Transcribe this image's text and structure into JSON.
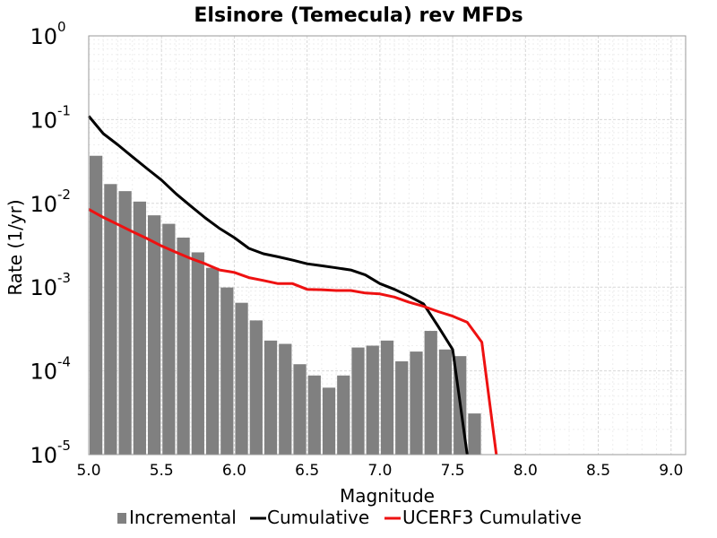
{
  "chart_data": {
    "type": "bar",
    "title": "Elsinore (Temecula) rev MFDs",
    "xlabel": "Magnitude",
    "ylabel": "Rate (1/yr)",
    "xlim": [
      5.0,
      9.1
    ],
    "ylim": [
      1e-05,
      1
    ],
    "yscale": "log",
    "grid": true,
    "legend_position": "bottom",
    "x_ticks": [
      "5.0",
      "5.5",
      "6.0",
      "6.5",
      "7.0",
      "7.5",
      "8.0",
      "8.5",
      "9.0"
    ],
    "y_ticks": [
      {
        "base": "10",
        "exp": "0"
      },
      {
        "base": "10",
        "exp": "-1"
      },
      {
        "base": "10",
        "exp": "-2"
      },
      {
        "base": "10",
        "exp": "-3"
      },
      {
        "base": "10",
        "exp": "-4"
      },
      {
        "base": "10",
        "exp": "-5"
      }
    ],
    "series": [
      {
        "name": "Incremental",
        "type": "bar",
        "color": "#808080",
        "x": [
          5.0,
          5.1,
          5.2,
          5.3,
          5.4,
          5.5,
          5.6,
          5.7,
          5.8,
          5.9,
          6.0,
          6.1,
          6.2,
          6.3,
          6.4,
          6.5,
          6.6,
          6.7,
          6.8,
          6.9,
          7.0,
          7.1,
          7.2,
          7.3,
          7.4,
          7.5,
          7.6
        ],
        "values": [
          0.037,
          0.017,
          0.014,
          0.0105,
          0.0072,
          0.0057,
          0.0039,
          0.0026,
          0.0017,
          0.00099,
          0.00065,
          0.0004,
          0.00023,
          0.00021,
          0.00012,
          8.8e-05,
          6.3e-05,
          8.8e-05,
          0.00019,
          0.0002,
          0.00023,
          0.00013,
          0.00017,
          0.0003,
          0.00018,
          0.00015,
          3.1e-05
        ]
      },
      {
        "name": "Cumulative",
        "type": "line",
        "color": "#000000",
        "x": [
          5.0,
          5.1,
          5.2,
          5.3,
          5.4,
          5.5,
          5.6,
          5.7,
          5.8,
          5.9,
          6.0,
          6.1,
          6.2,
          6.3,
          6.4,
          6.5,
          6.6,
          6.7,
          6.8,
          6.9,
          7.0,
          7.1,
          7.2,
          7.3,
          7.4,
          7.5,
          7.6
        ],
        "values": [
          0.11,
          0.068,
          0.05,
          0.036,
          0.026,
          0.019,
          0.013,
          0.0093,
          0.0067,
          0.005,
          0.0039,
          0.0029,
          0.0025,
          0.0023,
          0.0021,
          0.0019,
          0.0018,
          0.0017,
          0.0016,
          0.0014,
          0.0011,
          0.00094,
          0.00078,
          0.00063,
          0.00034,
          0.00018,
          1e-05
        ]
      },
      {
        "name": "UCERF3 Cumulative",
        "type": "line",
        "color": "#ee1111",
        "x": [
          5.0,
          5.1,
          5.2,
          5.3,
          5.4,
          5.5,
          5.6,
          5.7,
          5.8,
          5.9,
          6.0,
          6.1,
          6.2,
          6.3,
          6.4,
          6.5,
          6.6,
          6.7,
          6.8,
          6.9,
          7.0,
          7.1,
          7.2,
          7.3,
          7.4,
          7.5,
          7.6,
          7.7,
          7.8
        ],
        "values": [
          0.0085,
          0.0068,
          0.0056,
          0.0046,
          0.0038,
          0.0031,
          0.0026,
          0.0022,
          0.0019,
          0.0016,
          0.0015,
          0.0013,
          0.0012,
          0.0011,
          0.0011,
          0.00094,
          0.00093,
          0.00091,
          0.00091,
          0.00085,
          0.00083,
          0.00076,
          0.00066,
          0.00059,
          0.00051,
          0.00045,
          0.00038,
          0.00022,
          1e-05
        ]
      }
    ]
  }
}
